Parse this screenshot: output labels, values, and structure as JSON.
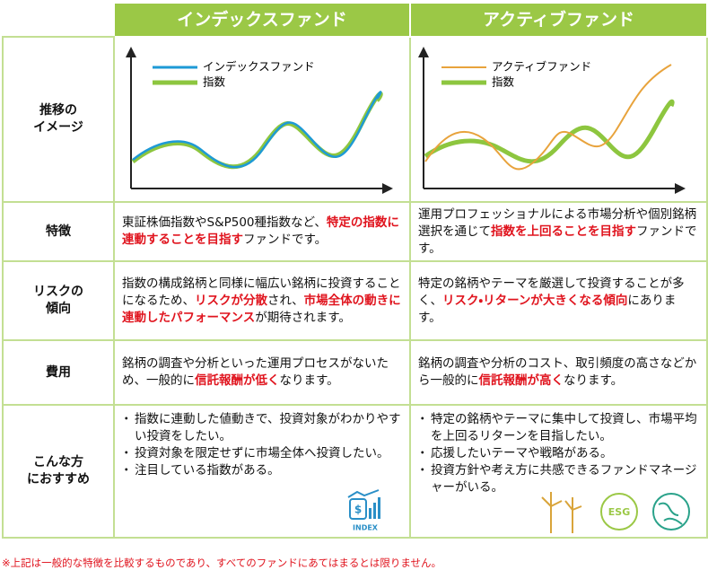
{
  "header": {
    "index": "インデックスファンド",
    "active": "アクティブファンド"
  },
  "image_row": {
    "label": [
      "推移の",
      "イメージ"
    ],
    "index_legend": [
      "インデックスファンド",
      "指数"
    ],
    "active_legend": [
      "アクティブファンド",
      "指数"
    ]
  },
  "rows": [
    {
      "label": [
        "特徴"
      ],
      "index": [
        "東証株価指数やS&P500種指数など、",
        {
          "em": "特定の指数に連動することを目指す"
        },
        "ファンドです。"
      ],
      "active": [
        "運用プロフェッショナルによる市場分析や個別銘柄選択を通じて",
        {
          "em": "指数を上回ることを目指す"
        },
        "ファンドです。"
      ]
    },
    {
      "label": [
        "リスクの",
        "傾向"
      ],
      "index": [
        "指数の構成銘柄と同様に幅広い銘柄に投資することになるため、",
        {
          "em": "リスクが分散"
        },
        "され、",
        {
          "em": "市場全体の動きに連動したパフォーマンス"
        },
        "が期待されます。"
      ],
      "active": [
        "特定の銘柄やテーマを厳選して投資することが多く、",
        {
          "em": "リスク・リターンが大きくなる傾向"
        },
        "にあります。"
      ]
    },
    {
      "label": [
        "費用"
      ],
      "index": [
        "銘柄の調査や分析といった運用プロセスがないため、一般的に",
        {
          "em": "信託報酬が低く"
        },
        "なります。"
      ],
      "active": [
        "銘柄の調査や分析のコスト、取引頻度の高さなどから一般的に",
        {
          "em": "信託報酬が高く"
        },
        "なります。"
      ]
    }
  ],
  "recommend": {
    "label": [
      "こんな方",
      "におすすめ"
    ],
    "index": [
      "指数に連動した値動きで、投資対象がわかりやすい投資をしたい。",
      "投資対象を限定せずに市場全体へ投資したい。",
      "注目している指数がある。"
    ],
    "active": [
      "特定の銘柄やテーマに集中して投資し、市場平均を上回るリターンを目指したい。",
      "応援したいテーマや戦略がある。",
      "投資方針や考え方に共感できるファンドマネージャーがいる。"
    ]
  },
  "icons": {
    "index": "INDEX",
    "esg": "ESG"
  },
  "footnote": "※上記は一般的な特徴を比較するものであり、すべてのファンドにあてはまるとは限りません。"
}
